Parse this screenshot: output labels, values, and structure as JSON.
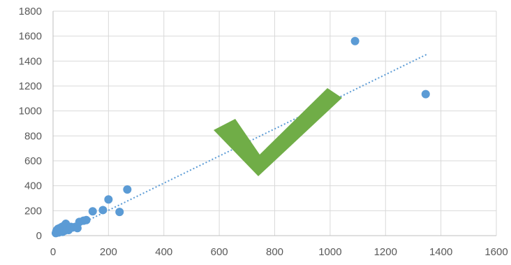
{
  "chart_data": {
    "type": "scatter",
    "title": "",
    "xlabel": "",
    "ylabel": "",
    "xlim": [
      0,
      1600
    ],
    "ylim": [
      0,
      1800
    ],
    "x_ticks": [
      "0",
      "200",
      "400",
      "600",
      "800",
      "1000",
      "1200",
      "1400",
      "1600"
    ],
    "y_ticks": [
      "0",
      "200",
      "400",
      "600",
      "800",
      "1000",
      "1200",
      "1400",
      "1600",
      "1800"
    ],
    "grid": true,
    "legend": "none",
    "series": [
      {
        "marker_color": "#5B9BD5",
        "points": [
          [
            10,
            20
          ],
          [
            12,
            35
          ],
          [
            14,
            45
          ],
          [
            16,
            30
          ],
          [
            18,
            55
          ],
          [
            20,
            25
          ],
          [
            22,
            40
          ],
          [
            24,
            60
          ],
          [
            26,
            35
          ],
          [
            28,
            50
          ],
          [
            30,
            45
          ],
          [
            32,
            70
          ],
          [
            34,
            30
          ],
          [
            36,
            55
          ],
          [
            38,
            65
          ],
          [
            40,
            80
          ],
          [
            42,
            40
          ],
          [
            44,
            60
          ],
          [
            46,
            95
          ],
          [
            48,
            50
          ],
          [
            52,
            75
          ],
          [
            56,
            45
          ],
          [
            60,
            60
          ],
          [
            65,
            70
          ],
          [
            70,
            65
          ],
          [
            80,
            70
          ],
          [
            88,
            60
          ],
          [
            95,
            110
          ],
          [
            110,
            120
          ],
          [
            120,
            125
          ],
          [
            143,
            195
          ],
          [
            180,
            205
          ],
          [
            200,
            290
          ],
          [
            240,
            190
          ],
          [
            268,
            370
          ],
          [
            1090,
            1560
          ],
          [
            1345,
            1135
          ]
        ],
        "trendline": {
          "type": "linear",
          "style": "dotted",
          "from": [
            30,
            18
          ],
          "to": [
            1350,
            1455
          ]
        }
      }
    ],
    "annotation": {
      "type": "checkmark-icon",
      "color": "#70AD47"
    }
  }
}
